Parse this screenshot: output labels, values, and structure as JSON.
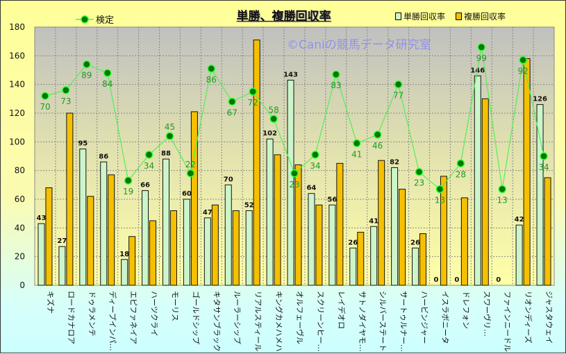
{
  "chart_data": {
    "type": "bar",
    "title": "単勝、複勝回収率",
    "watermark": "©Caniの競馬データ研究室",
    "xlabel": "",
    "ylabel": "",
    "ylim": [
      0,
      180
    ],
    "yticks": [
      0,
      20,
      40,
      60,
      80,
      100,
      120,
      140,
      160,
      180
    ],
    "grid": true,
    "legend_placement": "top",
    "categories": [
      "キズナ",
      "ロードカナロア",
      "ドゥラメンテ",
      "ディープインパ…",
      "エピファネイア",
      "ハーツクライ",
      "モーリス",
      "ゴールドシップ",
      "キタサンブラック",
      "ルーラーシップ",
      "リアルスティール",
      "キングカメハメハ",
      "オルフェーヴル",
      "スクリーンヒー…",
      "レイデオロ",
      "サトノダイヤモ…",
      "シルバーステート",
      "サートゥルナー…",
      "ハービンジャー",
      "イスラボニータ",
      "ドレフォン",
      "スワーヴリ…",
      "ファインニードル",
      "リオンディーズ",
      "ジャスタウェイ"
    ],
    "series": [
      {
        "name": "単勝回収率",
        "type": "bar",
        "color": "#ccf5cc",
        "values": [
          43,
          27,
          95,
          86,
          18,
          66,
          88,
          60,
          47,
          70,
          52,
          102,
          143,
          64,
          56,
          26,
          41,
          82,
          26,
          0,
          0,
          146,
          0,
          42,
          126
        ]
      },
      {
        "name": "複勝回収率",
        "type": "bar",
        "color": "#f5c000",
        "values": [
          68,
          120,
          62,
          77,
          34,
          45,
          52,
          121,
          56,
          52,
          171,
          91,
          84,
          56,
          85,
          37,
          87,
          67,
          36,
          76,
          61,
          130,
          0,
          158,
          75
        ]
      },
      {
        "name": "検定",
        "type": "line",
        "color": "#00aa00",
        "values": [
          132,
          136,
          154,
          148,
          73,
          91,
          104,
          78,
          151,
          128,
          135,
          116,
          78,
          91,
          147,
          99,
          105,
          140,
          79,
          67,
          85,
          166,
          67,
          157,
          90
        ],
        "labels": [
          70,
          73,
          89,
          84,
          19,
          34,
          45,
          22,
          86,
          67,
          72,
          58,
          23,
          34,
          83,
          41,
          46,
          77,
          23,
          13,
          28,
          99,
          13,
          92,
          34
        ]
      }
    ]
  }
}
